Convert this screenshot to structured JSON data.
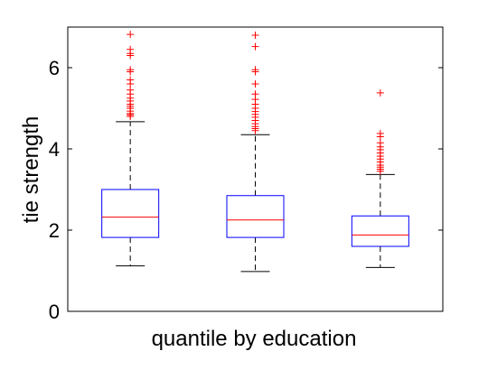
{
  "chart_data": {
    "type": "boxplot",
    "title": "",
    "xlabel": "quantile by education",
    "ylabel": "tie strength",
    "ylim": [
      0,
      7
    ],
    "yticks": [
      0,
      2,
      4,
      6
    ],
    "grid": false,
    "legend": "none",
    "colors": {
      "box": "#0000ff",
      "median": "#ff0000",
      "whisker": "#000000",
      "outlier": "#ff0000",
      "axis": "#000000"
    },
    "series": [
      {
        "category": "",
        "whisker_low": 1.12,
        "q1": 1.82,
        "median": 2.32,
        "q3": 3.0,
        "whisker_high": 4.67,
        "outliers": [
          4.8,
          4.84,
          4.87,
          4.93,
          5.0,
          5.05,
          5.1,
          5.18,
          5.25,
          5.35,
          5.45,
          5.6,
          5.7,
          5.9,
          5.95,
          6.3,
          6.35,
          6.45,
          6.82
        ]
      },
      {
        "category": "",
        "whisker_low": 0.98,
        "q1": 1.82,
        "median": 2.25,
        "q3": 2.85,
        "whisker_high": 4.35,
        "outliers": [
          4.45,
          4.5,
          4.55,
          4.62,
          4.7,
          4.78,
          4.85,
          4.92,
          5.0,
          5.1,
          5.22,
          5.35,
          5.6,
          5.9,
          5.95,
          6.52,
          6.8
        ]
      },
      {
        "category": "",
        "whisker_low": 1.08,
        "q1": 1.6,
        "median": 1.88,
        "q3": 2.35,
        "whisker_high": 3.37,
        "outliers": [
          3.45,
          3.5,
          3.55,
          3.6,
          3.68,
          3.75,
          3.82,
          3.9,
          3.98,
          4.05,
          4.15,
          4.3,
          4.38,
          5.38
        ]
      }
    ]
  }
}
